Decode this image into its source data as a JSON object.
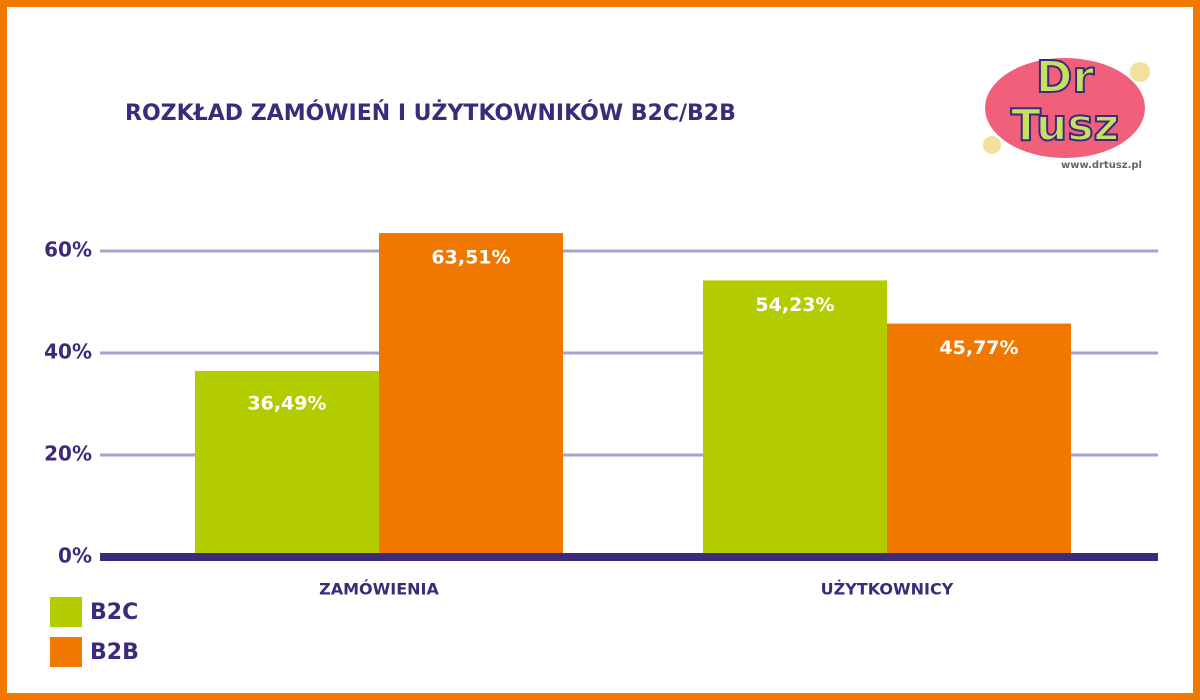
{
  "chart_data": {
    "type": "bar",
    "title": "ROZKŁAD ZAMÓWIEŃ I UŻYTKOWNIKÓW B2C/B2B",
    "categories": [
      "ZAMÓWIENIA",
      "UŻYTKOWNICY"
    ],
    "series": [
      {
        "name": "B2C",
        "color": "#b3cc00",
        "values": [
          36.49,
          54.23
        ],
        "value_labels": [
          "36,49%",
          "54,23%"
        ]
      },
      {
        "name": "B2B",
        "color": "#f07800",
        "values": [
          63.51,
          45.77
        ],
        "value_labels": [
          "63,51%",
          "45,77%"
        ]
      }
    ],
    "ylim": [
      0,
      70
    ],
    "yticks": [
      {
        "value": 0,
        "label": "0%"
      },
      {
        "value": 20,
        "label": "20%"
      },
      {
        "value": 40,
        "label": "40%"
      },
      {
        "value": 60,
        "label": "60%"
      }
    ],
    "grid": true,
    "legend": "bottom-left"
  },
  "logo": {
    "line1": "Dr",
    "line2": "Tusz",
    "url": "www.drtusz.pl"
  }
}
